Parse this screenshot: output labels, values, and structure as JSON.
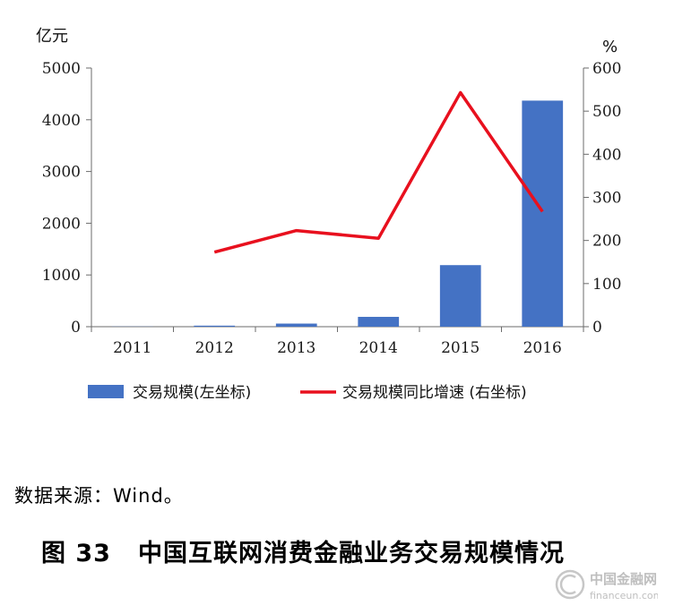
{
  "chart_data": {
    "type": "bar+line",
    "categories": [
      "2011",
      "2012",
      "2013",
      "2014",
      "2015",
      "2016"
    ],
    "series": [
      {
        "name": "交易规模(左坐标)",
        "type": "bar",
        "axis": "left",
        "color": "#4472C4",
        "values": [
          3,
          20,
          60,
          190,
          1190,
          4370
        ]
      },
      {
        "name": "交易规模同比增速 (右坐标)",
        "type": "line",
        "axis": "right",
        "color": "#E8101E",
        "values": [
          null,
          173,
          223,
          205,
          543,
          267
        ]
      }
    ],
    "left_axis": {
      "unit": "亿元",
      "ylim": [
        0,
        5000
      ],
      "ticks": [
        "0",
        "1000",
        "2000",
        "3000",
        "4000",
        "5000"
      ]
    },
    "right_axis": {
      "unit": "%",
      "ylim": [
        0,
        600
      ],
      "ticks": [
        "0",
        "100",
        "200",
        "300",
        "400",
        "500",
        "600"
      ]
    },
    "grid": false,
    "legend_position": "bottom"
  },
  "source_text": "数据来源：Wind。",
  "caption": {
    "number": "图 33",
    "title": "中国互联网消费金融业务交易规模情况"
  },
  "watermark": {
    "text_cn": "中国金融网",
    "text_en": "financeun.com"
  }
}
